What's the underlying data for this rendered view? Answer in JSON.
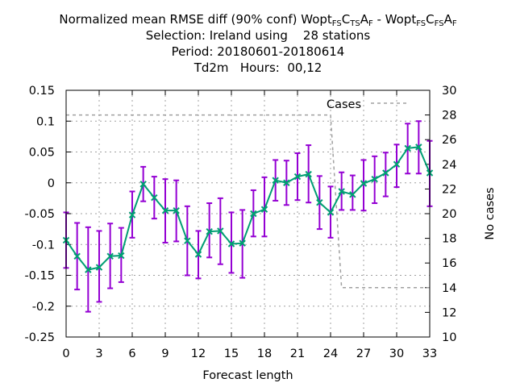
{
  "header": {
    "title_prefix": "Normalized mean RMSE diff (90% conf) Wopt",
    "exp1_sub1": "FS",
    "exp1_c": "C",
    "exp1_sub2": "TS",
    "exp1_a": "A",
    "exp1_sub3": "F",
    "minus": " - Wopt",
    "exp2_sub1": "FS",
    "exp2_c": "C",
    "exp2_sub2": "FS",
    "exp2_a": "A",
    "exp2_sub3": "F",
    "selection": "Selection: Ireland using    28 stations",
    "period": "Period: 20180601-20180614",
    "param": "Td2m   Hours:  00,12"
  },
  "chart_data": {
    "type": "line",
    "xlabel": "Forecast length",
    "ylabel_left": "",
    "ylabel_right": "No cases",
    "xlim": [
      0,
      33
    ],
    "ylim": [
      -0.25,
      0.15
    ],
    "y2lim": [
      10,
      30
    ],
    "xticks": [
      "0",
      "3",
      "6",
      "9",
      "12",
      "15",
      "18",
      "21",
      "24",
      "27",
      "30",
      "33"
    ],
    "yticks": [
      "0.15",
      "0.1",
      "0.05",
      "0",
      "-0.05",
      "-0.1",
      "-0.15",
      "-0.2",
      "-0.25"
    ],
    "y2ticks": [
      "30",
      "28",
      "26",
      "24",
      "22",
      "20",
      "18",
      "16",
      "14",
      "12",
      "10"
    ],
    "legend": "Cases",
    "series": [
      {
        "name": "RMSE diff",
        "x": [
          0,
          1,
          2,
          3,
          4,
          5,
          6,
          7,
          8,
          9,
          10,
          11,
          12,
          13,
          14,
          15,
          16,
          17,
          18,
          19,
          20,
          21,
          22,
          23,
          24,
          25,
          26,
          27,
          28,
          29,
          30,
          31,
          32,
          33
        ],
        "values": [
          -0.093,
          -0.119,
          -0.141,
          -0.137,
          -0.119,
          -0.118,
          -0.052,
          -0.002,
          -0.024,
          -0.045,
          -0.045,
          -0.094,
          -0.116,
          -0.079,
          -0.078,
          -0.099,
          -0.098,
          -0.05,
          -0.043,
          0.004,
          0.0,
          0.01,
          0.014,
          -0.032,
          -0.048,
          -0.014,
          -0.019,
          -0.001,
          0.006,
          0.016,
          0.03,
          0.056,
          0.058,
          0.016
        ],
        "err_low": [
          -0.138,
          -0.173,
          -0.209,
          -0.193,
          -0.171,
          -0.161,
          -0.089,
          -0.03,
          -0.058,
          -0.097,
          -0.095,
          -0.15,
          -0.155,
          -0.121,
          -0.132,
          -0.146,
          -0.154,
          -0.087,
          -0.087,
          -0.029,
          -0.036,
          -0.028,
          -0.032,
          -0.075,
          -0.089,
          -0.044,
          -0.044,
          -0.045,
          -0.033,
          -0.022,
          -0.007,
          0.015,
          0.015,
          -0.038
        ],
        "err_high": [
          -0.048,
          -0.065,
          -0.072,
          -0.078,
          -0.066,
          -0.073,
          -0.014,
          0.026,
          0.01,
          0.006,
          0.004,
          -0.038,
          -0.078,
          -0.033,
          -0.025,
          -0.048,
          -0.044,
          -0.012,
          0.009,
          0.037,
          0.036,
          0.048,
          0.061,
          0.011,
          -0.006,
          0.017,
          0.012,
          0.037,
          0.043,
          0.049,
          0.062,
          0.096,
          0.1,
          0.068
        ]
      },
      {
        "name": "Cases",
        "x": [
          0,
          24,
          25,
          33
        ],
        "values": [
          28,
          28,
          14,
          14
        ]
      }
    ]
  },
  "colors": {
    "line": "#009e73",
    "errorbar": "#9400d3",
    "cases": "#a0a0a0",
    "grid": "#a0a0a0"
  }
}
